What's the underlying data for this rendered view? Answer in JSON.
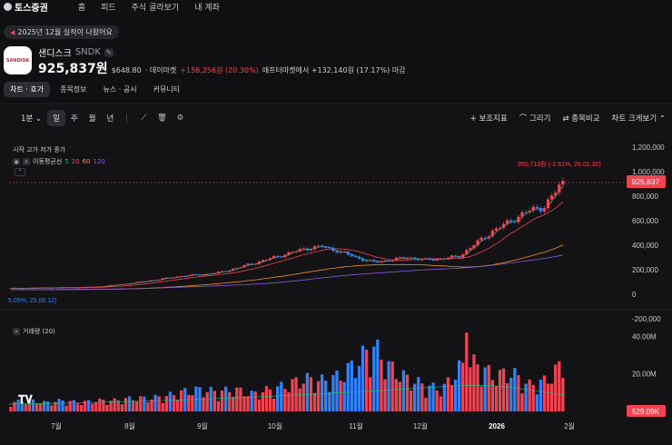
{
  "topnav": {
    "brand": "토스증권",
    "items": [
      "홈",
      "피드",
      "주식 골라보기",
      "내 계좌"
    ]
  },
  "notice": {
    "text": "2025년 12월 실적이 나왔어요"
  },
  "stock": {
    "logo_text": "SANDISK",
    "name": "샌디스크",
    "code": "SNDK",
    "price": "925,837원",
    "usd_price": "$648.80",
    "day_market_label": "· 데이마켓",
    "change": "+156,256원 (20.30%)",
    "after_market": "애프터마켓에서 +132,140원 (17.17%) 마감"
  },
  "tabs": [
    {
      "label": "차트 · 호가",
      "active": true
    },
    {
      "label": "종목정보",
      "active": false
    },
    {
      "label": "뉴스 · 공시",
      "active": false
    },
    {
      "label": "커뮤니티",
      "active": false
    }
  ],
  "toolbar": {
    "interval": "1분",
    "periods": [
      {
        "label": "일",
        "active": true
      },
      {
        "label": "주",
        "active": false
      },
      {
        "label": "월",
        "active": false
      },
      {
        "label": "년",
        "active": false
      }
    ],
    "right": [
      {
        "label": "+ 보조지표"
      },
      {
        "label": "⌒ 그리기"
      },
      {
        "label": "⇄ 종목비교"
      },
      {
        "label": "차트 크게보기 ⌃"
      }
    ]
  },
  "legend": {
    "ohlc": "시작 고가 저가 종가",
    "ma_label": "이동평균선",
    "ma_periods": [
      "5",
      "20",
      "60",
      "120"
    ],
    "volume_label": "거래량 (20)"
  },
  "colors": {
    "up": "#f04452",
    "down": "#3182f6",
    "ma5": "#2fb37a",
    "ma20": "#f04452",
    "ma60": "#f0902e",
    "ma120": "#8a5cd6"
  },
  "annotations": {
    "high": "950,710원 (-2.61%, 26.01.30)",
    "low": "5.05%, 25.06.12)",
    "current_price_tag": "925,837",
    "volume_tag": "529.09K"
  },
  "chart_data": {
    "type": "candlestick",
    "price_axis_ticks": [
      "1,200,000",
      "1,000,000",
      "800,000",
      "600,000",
      "400,000",
      "200,000",
      "0",
      "-200,000"
    ],
    "volume_axis_ticks": [
      "40.00M",
      "20.00M"
    ],
    "x_labels": [
      "7월",
      "8월",
      "9월",
      "10월",
      "11월",
      "12월",
      "2026",
      "2월"
    ],
    "ylim": [
      -200000,
      1200000
    ],
    "current_price": 925837,
    "period_high": 950710,
    "weekly_closes": [
      48000,
      50000,
      52000,
      54000,
      56000,
      60000,
      75000,
      90000,
      110000,
      130000,
      150000,
      160000,
      175000,
      210000,
      250000,
      290000,
      330000,
      370000,
      390000,
      350000,
      300000,
      260000,
      280000,
      300000,
      280000,
      290000,
      310000,
      420000,
      520000,
      600000,
      680000,
      720000,
      925837
    ],
    "weekly_volumes_m": [
      4,
      5,
      4,
      5,
      4,
      5,
      5,
      6,
      6,
      7,
      9,
      10,
      9,
      10,
      8,
      10,
      12,
      15,
      14,
      16,
      22,
      30,
      20,
      15,
      12,
      10,
      20,
      22,
      16,
      18,
      12,
      14,
      22
    ]
  }
}
